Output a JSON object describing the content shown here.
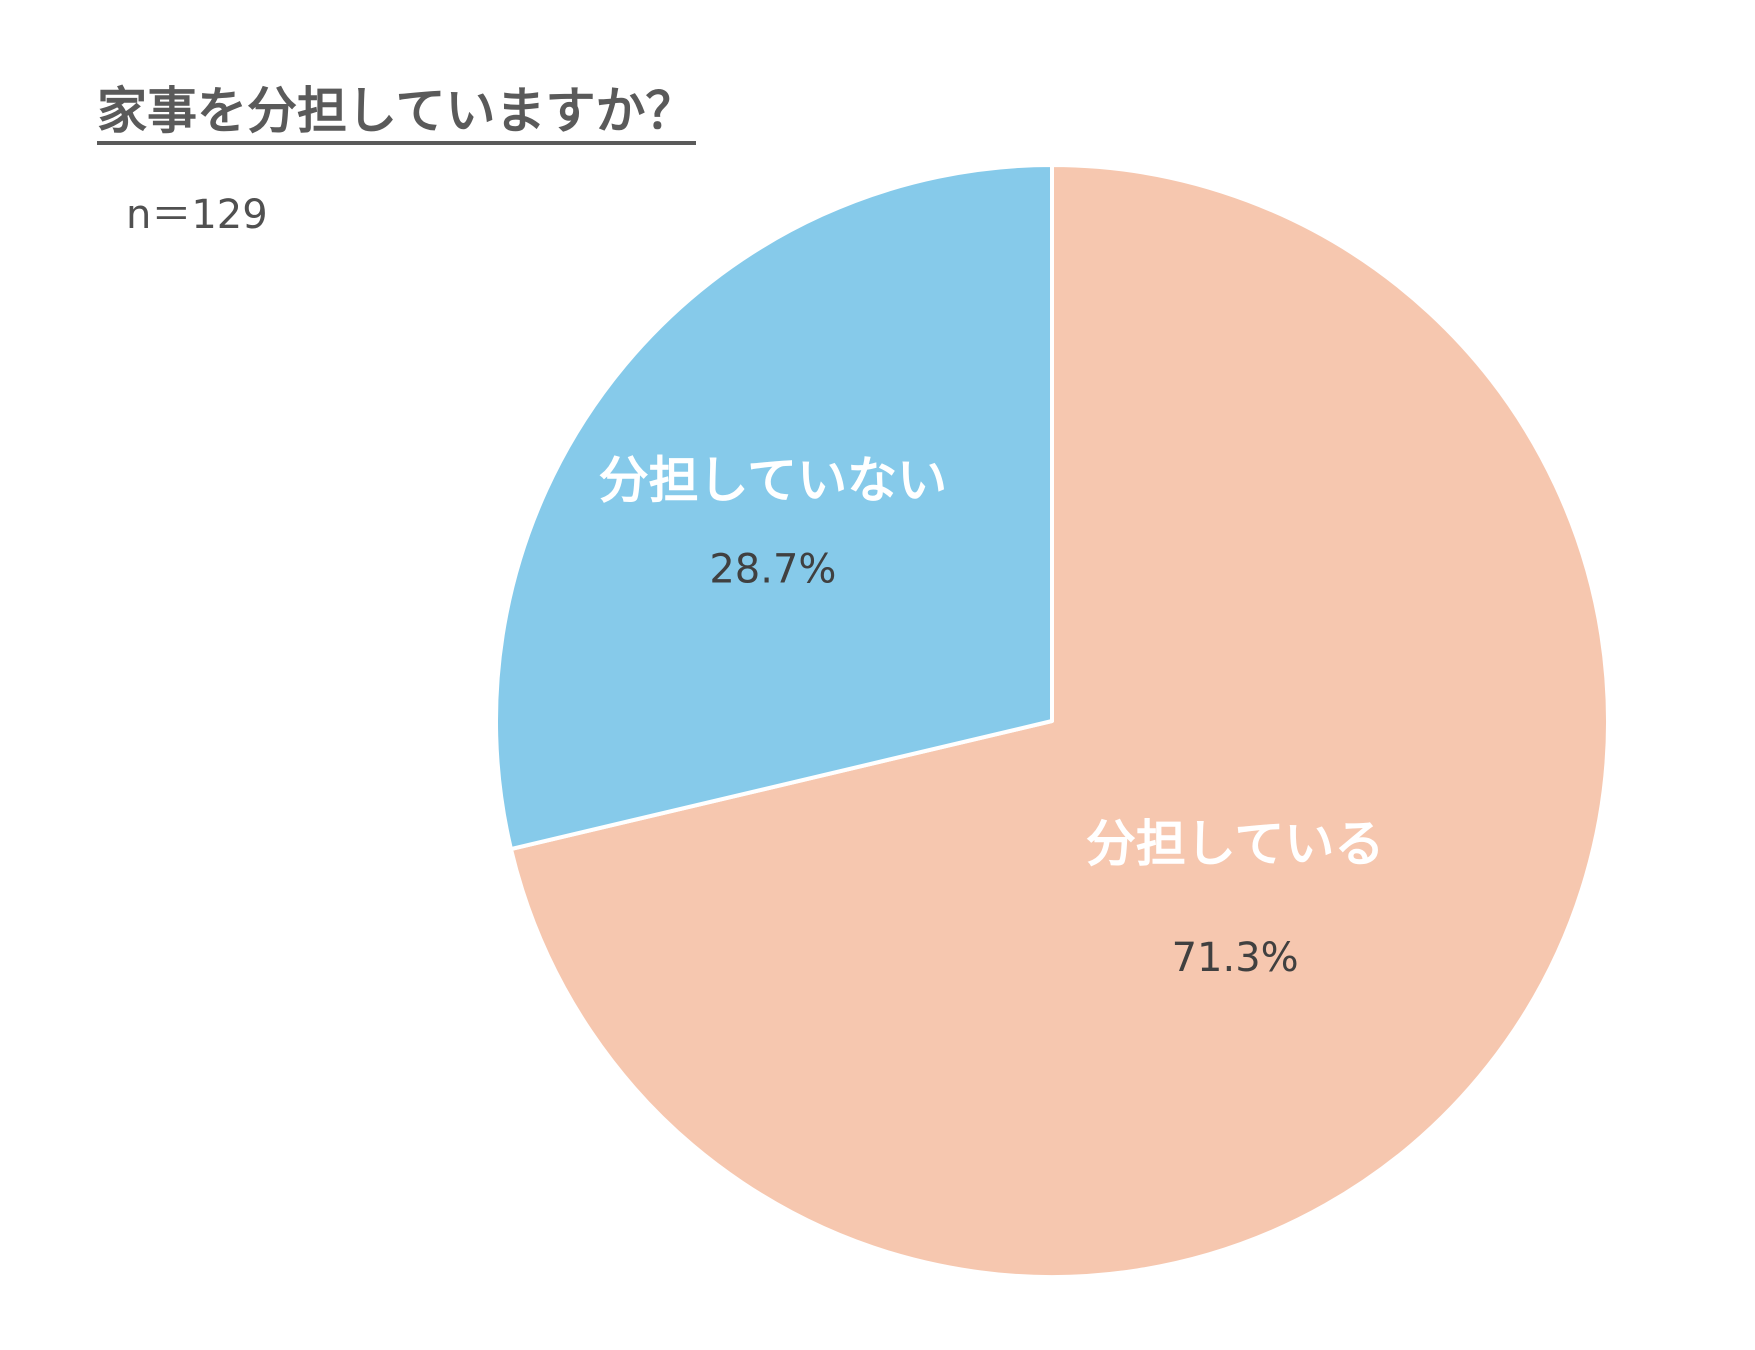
{
  "chart_data": {
    "type": "pie",
    "title": "家事を分担していますか？",
    "subtitle": "n＝129",
    "categories": [
      "分担している",
      "分担していない"
    ],
    "values": [
      71.3,
      28.7
    ],
    "value_labels": [
      "71.3%",
      "28.7%"
    ],
    "colors": [
      "#F6C7AF",
      "#86CAEA"
    ],
    "start_angle_deg": 0,
    "direction": "clockwise",
    "legend": "none",
    "grid": false
  }
}
